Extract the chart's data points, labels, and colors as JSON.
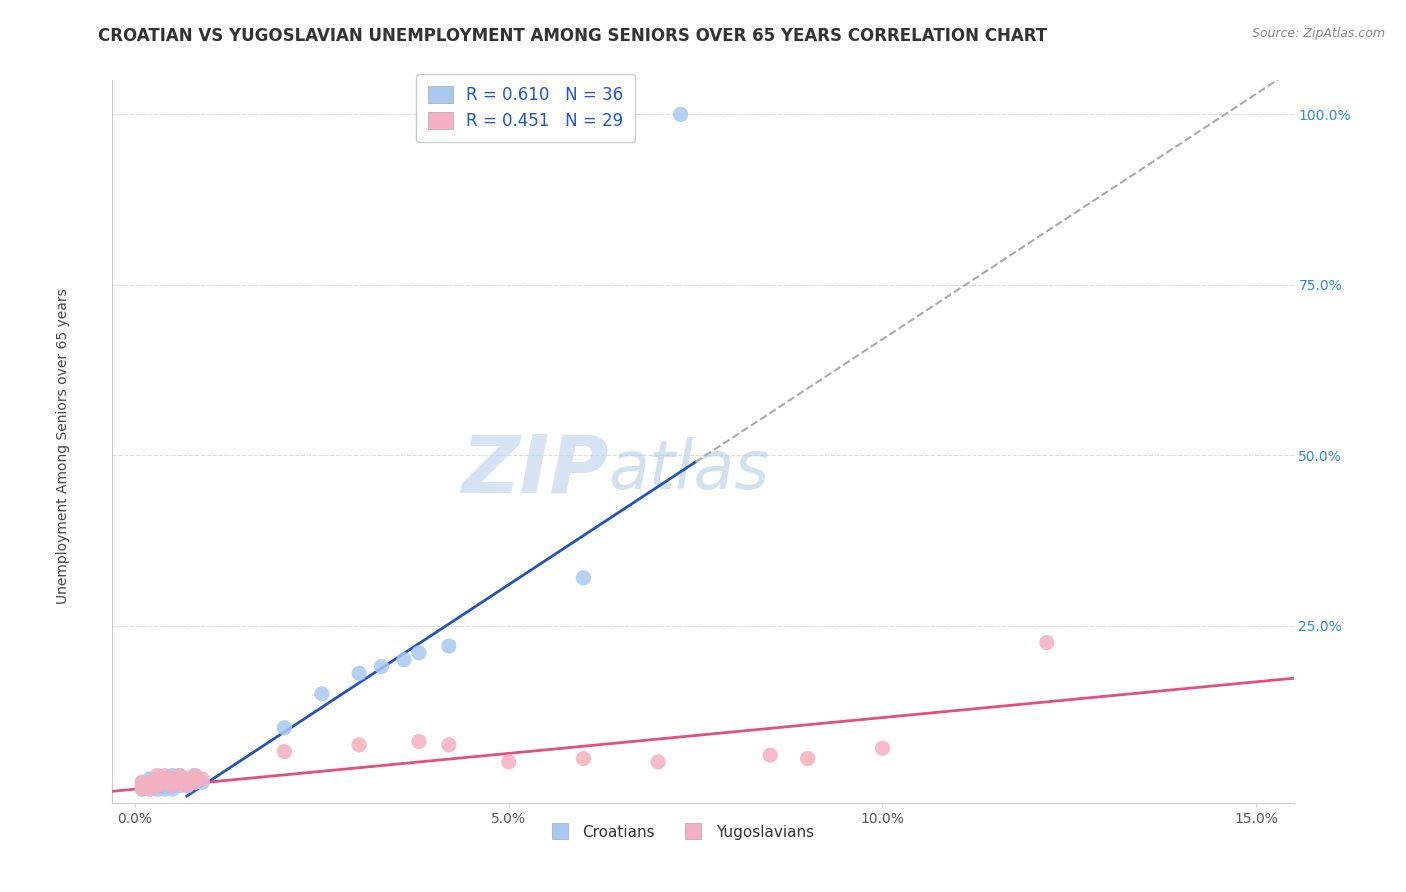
{
  "title": "CROATIAN VS YUGOSLAVIAN UNEMPLOYMENT AMONG SENIORS OVER 65 YEARS CORRELATION CHART",
  "source": "Source: ZipAtlas.com",
  "ylabel": "Unemployment Among Seniors over 65 years",
  "xlim": [
    -0.003,
    0.155
  ],
  "ylim": [
    -0.01,
    1.05
  ],
  "xticks": [
    0.0,
    0.05,
    0.1,
    0.15
  ],
  "xtick_labels": [
    "0.0%",
    "5.0%",
    "10.0%",
    "15.0%"
  ],
  "yticks": [
    0.0,
    0.25,
    0.5,
    0.75,
    1.0
  ],
  "ytick_labels": [
    "",
    "25.0%",
    "50.0%",
    "75.0%",
    "100.0%"
  ],
  "croatian_R": 0.61,
  "croatian_N": 36,
  "yugoslavian_R": 0.451,
  "yugoslavian_N": 29,
  "croatian_color": "#a8c8f0",
  "croatian_line_color": "#2255bb",
  "yugoslavian_color": "#f4b0c0",
  "yugoslavian_line_color": "#e05080",
  "dashed_line_color": "#aaaaaa",
  "watermark_zip": "ZIP",
  "watermark_atlas": "atlas",
  "watermark_color_zip": "#c8d8ee",
  "watermark_color_atlas": "#b8cce4",
  "croatian_x": [
    0.001,
    0.001,
    0.001,
    0.002,
    0.002,
    0.002,
    0.002,
    0.003,
    0.003,
    0.003,
    0.003,
    0.004,
    0.004,
    0.004,
    0.004,
    0.005,
    0.005,
    0.005,
    0.005,
    0.006,
    0.006,
    0.006,
    0.007,
    0.007,
    0.008,
    0.008,
    0.009,
    0.02,
    0.025,
    0.03,
    0.033,
    0.036,
    0.038,
    0.042,
    0.06,
    0.073
  ],
  "croatian_y": [
    0.01,
    0.015,
    0.02,
    0.01,
    0.015,
    0.02,
    0.025,
    0.01,
    0.015,
    0.02,
    0.025,
    0.01,
    0.015,
    0.02,
    0.025,
    0.01,
    0.015,
    0.02,
    0.03,
    0.015,
    0.02,
    0.03,
    0.015,
    0.025,
    0.02,
    0.03,
    0.02,
    0.1,
    0.15,
    0.18,
    0.19,
    0.2,
    0.21,
    0.22,
    0.32,
    1.0
  ],
  "yugoslavian_x": [
    0.001,
    0.001,
    0.002,
    0.002,
    0.003,
    0.003,
    0.003,
    0.004,
    0.004,
    0.005,
    0.005,
    0.006,
    0.006,
    0.007,
    0.007,
    0.008,
    0.008,
    0.009,
    0.02,
    0.03,
    0.038,
    0.042,
    0.05,
    0.06,
    0.07,
    0.085,
    0.09,
    0.1,
    0.122
  ],
  "yugoslavian_y": [
    0.01,
    0.02,
    0.01,
    0.02,
    0.015,
    0.025,
    0.03,
    0.02,
    0.03,
    0.015,
    0.025,
    0.02,
    0.03,
    0.015,
    0.025,
    0.02,
    0.03,
    0.025,
    0.065,
    0.075,
    0.08,
    0.075,
    0.05,
    0.055,
    0.05,
    0.06,
    0.055,
    0.07,
    0.225
  ],
  "title_fontsize": 12,
  "axis_label_fontsize": 10,
  "tick_fontsize": 10,
  "legend_fontsize": 12
}
